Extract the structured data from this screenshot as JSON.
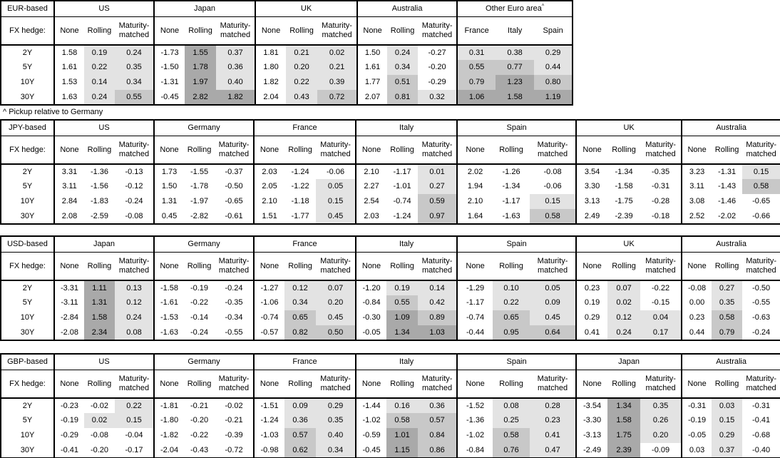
{
  "footnote": "^ Pickup relative to Germany",
  "labels": {
    "fx_hedge": "FX hedge:"
  },
  "tenors": [
    "2Y",
    "5Y",
    "10Y",
    "30Y"
  ],
  "shading_colors": {
    "light": "#e3e3e3",
    "mid": "#c8c8c8",
    "dark": "#a9a9a9"
  },
  "shading_thresholds": {
    "light_min": 0,
    "mid_min": 0.5,
    "dark_min": 1.0
  },
  "tables": [
    {
      "id": "eur",
      "base": "EUR-based",
      "groups": [
        {
          "country": "US",
          "cols": [
            "None",
            "Rolling",
            "Maturity-matched"
          ],
          "shade_cols": [
            false,
            true,
            true
          ],
          "rows": [
            [
              "1.58",
              "0.19",
              "0.24"
            ],
            [
              "1.61",
              "0.22",
              "0.35"
            ],
            [
              "1.53",
              "0.14",
              "0.34"
            ],
            [
              "1.63",
              "0.24",
              "0.55"
            ]
          ]
        },
        {
          "country": "Japan",
          "cols": [
            "None",
            "Rolling",
            "Maturity-matched"
          ],
          "shade_cols": [
            false,
            true,
            true
          ],
          "rows": [
            [
              "-1.73",
              "1.55",
              "0.37"
            ],
            [
              "-1.50",
              "1.78",
              "0.36"
            ],
            [
              "-1.31",
              "1.97",
              "0.40"
            ],
            [
              "-0.45",
              "2.82",
              "1.82"
            ]
          ]
        },
        {
          "country": "UK",
          "cols": [
            "None",
            "Rolling",
            "Maturity-matched"
          ],
          "shade_cols": [
            false,
            true,
            true
          ],
          "rows": [
            [
              "1.81",
              "0.21",
              "0.02"
            ],
            [
              "1.80",
              "0.20",
              "0.21"
            ],
            [
              "1.82",
              "0.22",
              "0.39"
            ],
            [
              "2.04",
              "0.43",
              "0.72"
            ]
          ]
        },
        {
          "country": "Australia",
          "cols": [
            "None",
            "Rolling",
            "Maturity-matched"
          ],
          "shade_cols": [
            false,
            true,
            true
          ],
          "rows": [
            [
              "1.50",
              "0.24",
              "-0.27"
            ],
            [
              "1.61",
              "0.34",
              "-0.20"
            ],
            [
              "1.77",
              "0.51",
              "-0.29"
            ],
            [
              "2.07",
              "0.81",
              "0.32"
            ]
          ]
        },
        {
          "country": "Other Euro area",
          "sup": "^",
          "cols": [
            "France",
            "Italy",
            "Spain"
          ],
          "shade_cols": [
            true,
            true,
            true
          ],
          "rows": [
            [
              "0.31",
              "0.38",
              "0.29"
            ],
            [
              "0.55",
              "0.77",
              "0.44"
            ],
            [
              "0.79",
              "1.23",
              "0.80"
            ],
            [
              "1.06",
              "1.58",
              "1.19"
            ]
          ]
        }
      ]
    },
    {
      "id": "jpy",
      "base": "JPY-based",
      "groups": [
        {
          "country": "US",
          "cols": [
            "None",
            "Rolling",
            "Maturity-matched"
          ],
          "shade_cols": [
            false,
            true,
            true
          ],
          "rows": [
            [
              "3.31",
              "-1.36",
              "-0.13"
            ],
            [
              "3.11",
              "-1.56",
              "-0.12"
            ],
            [
              "2.84",
              "-1.83",
              "-0.24"
            ],
            [
              "2.08",
              "-2.59",
              "-0.08"
            ]
          ]
        },
        {
          "country": "Germany",
          "cols": [
            "None",
            "Rolling",
            "Maturity-matched"
          ],
          "shade_cols": [
            false,
            true,
            true
          ],
          "rows": [
            [
              "1.73",
              "-1.55",
              "-0.37"
            ],
            [
              "1.50",
              "-1.78",
              "-0.50"
            ],
            [
              "1.31",
              "-1.97",
              "-0.65"
            ],
            [
              "0.45",
              "-2.82",
              "-0.61"
            ]
          ]
        },
        {
          "country": "France",
          "cols": [
            "None",
            "Rolling",
            "Maturity-matched"
          ],
          "shade_cols": [
            false,
            true,
            true
          ],
          "rows": [
            [
              "2.03",
              "-1.24",
              "-0.06"
            ],
            [
              "2.05",
              "-1.22",
              "0.05"
            ],
            [
              "2.10",
              "-1.18",
              "0.15"
            ],
            [
              "1.51",
              "-1.77",
              "0.45"
            ]
          ]
        },
        {
          "country": "Italy",
          "cols": [
            "None",
            "Rolling",
            "Maturity-matched"
          ],
          "shade_cols": [
            false,
            true,
            true
          ],
          "rows": [
            [
              "2.10",
              "-1.17",
              "0.01"
            ],
            [
              "2.27",
              "-1.01",
              "0.27"
            ],
            [
              "2.54",
              "-0.74",
              "0.59"
            ],
            [
              "2.03",
              "-1.24",
              "0.97"
            ]
          ]
        },
        {
          "country": "Spain",
          "cols": [
            "None",
            "Rolling",
            "Maturity-matched"
          ],
          "shade_cols": [
            false,
            true,
            true
          ],
          "rows": [
            [
              "2.02",
              "-1.26",
              "-0.08"
            ],
            [
              "1.94",
              "-1.34",
              "-0.06"
            ],
            [
              "2.10",
              "-1.17",
              "0.15"
            ],
            [
              "1.64",
              "-1.63",
              "0.58"
            ]
          ]
        },
        {
          "country": "UK",
          "cols": [
            "None",
            "Rolling",
            "Maturity-matched"
          ],
          "shade_cols": [
            false,
            true,
            true
          ],
          "rows": [
            [
              "3.54",
              "-1.34",
              "-0.35"
            ],
            [
              "3.30",
              "-1.58",
              "-0.31"
            ],
            [
              "3.13",
              "-1.75",
              "-0.28"
            ],
            [
              "2.49",
              "-2.39",
              "-0.18"
            ]
          ]
        },
        {
          "country": "Australia",
          "cols": [
            "None",
            "Rolling",
            "Maturity-matched"
          ],
          "shade_cols": [
            false,
            true,
            true
          ],
          "rows": [
            [
              "3.23",
              "-1.31",
              "0.15"
            ],
            [
              "3.11",
              "-1.43",
              "0.58"
            ],
            [
              "3.08",
              "-1.46",
              "-0.65"
            ],
            [
              "2.52",
              "-2.02",
              "-0.66"
            ]
          ]
        }
      ]
    },
    {
      "id": "usd",
      "base": "USD-based",
      "groups": [
        {
          "country": "Japan",
          "cols": [
            "None",
            "Rolling",
            "Maturity-matched"
          ],
          "shade_cols": [
            false,
            true,
            true
          ],
          "rows": [
            [
              "-3.31",
              "1.11",
              "0.13"
            ],
            [
              "-3.11",
              "1.31",
              "0.12"
            ],
            [
              "-2.84",
              "1.58",
              "0.24"
            ],
            [
              "-2.08",
              "2.34",
              "0.08"
            ]
          ]
        },
        {
          "country": "Germany",
          "cols": [
            "None",
            "Rolling",
            "Maturity-matched"
          ],
          "shade_cols": [
            false,
            true,
            true
          ],
          "rows": [
            [
              "-1.58",
              "-0.19",
              "-0.24"
            ],
            [
              "-1.61",
              "-0.22",
              "-0.35"
            ],
            [
              "-1.53",
              "-0.14",
              "-0.34"
            ],
            [
              "-1.63",
              "-0.24",
              "-0.55"
            ]
          ]
        },
        {
          "country": "France",
          "cols": [
            "None",
            "Rolling",
            "Maturity-matched"
          ],
          "shade_cols": [
            false,
            true,
            true
          ],
          "rows": [
            [
              "-1.27",
              "0.12",
              "0.07"
            ],
            [
              "-1.06",
              "0.34",
              "0.20"
            ],
            [
              "-0.74",
              "0.65",
              "0.45"
            ],
            [
              "-0.57",
              "0.82",
              "0.50"
            ]
          ]
        },
        {
          "country": "Italy",
          "cols": [
            "None",
            "Rolling",
            "Maturity-matched"
          ],
          "shade_cols": [
            false,
            true,
            true
          ],
          "rows": [
            [
              "-1.20",
              "0.19",
              "0.14"
            ],
            [
              "-0.84",
              "0.55",
              "0.42"
            ],
            [
              "-0.30",
              "1.09",
              "0.89"
            ],
            [
              "-0.05",
              "1.34",
              "1.03"
            ]
          ]
        },
        {
          "country": "Spain",
          "cols": [
            "None",
            "Rolling",
            "Maturity-matched"
          ],
          "shade_cols": [
            false,
            true,
            true
          ],
          "rows": [
            [
              "-1.29",
              "0.10",
              "0.05"
            ],
            [
              "-1.17",
              "0.22",
              "0.09"
            ],
            [
              "-0.74",
              "0.65",
              "0.45"
            ],
            [
              "-0.44",
              "0.95",
              "0.64"
            ]
          ]
        },
        {
          "country": "UK",
          "cols": [
            "None",
            "Rolling",
            "Maturity-matched"
          ],
          "shade_cols": [
            false,
            true,
            true
          ],
          "rows": [
            [
              "0.23",
              "0.07",
              "-0.22"
            ],
            [
              "0.19",
              "0.02",
              "-0.15"
            ],
            [
              "0.29",
              "0.12",
              "0.04"
            ],
            [
              "0.41",
              "0.24",
              "0.17"
            ]
          ]
        },
        {
          "country": "Australia",
          "cols": [
            "None",
            "Rolling",
            "Maturity-matched"
          ],
          "shade_cols": [
            false,
            true,
            true
          ],
          "rows": [
            [
              "-0.08",
              "0.27",
              "-0.50"
            ],
            [
              "0.00",
              "0.35",
              "-0.55"
            ],
            [
              "0.23",
              "0.58",
              "-0.63"
            ],
            [
              "0.44",
              "0.79",
              "-0.24"
            ]
          ]
        }
      ]
    },
    {
      "id": "gbp",
      "base": "GBP-based",
      "groups": [
        {
          "country": "US",
          "cols": [
            "None",
            "Rolling",
            "Maturity-matched"
          ],
          "shade_cols": [
            false,
            true,
            true
          ],
          "rows": [
            [
              "-0.23",
              "-0.02",
              "0.22"
            ],
            [
              "-0.19",
              "0.02",
              "0.15"
            ],
            [
              "-0.29",
              "-0.08",
              "-0.04"
            ],
            [
              "-0.41",
              "-0.20",
              "-0.17"
            ]
          ]
        },
        {
          "country": "Germany",
          "cols": [
            "None",
            "Rolling",
            "Maturity-matched"
          ],
          "shade_cols": [
            false,
            true,
            true
          ],
          "rows": [
            [
              "-1.81",
              "-0.21",
              "-0.02"
            ],
            [
              "-1.80",
              "-0.20",
              "-0.21"
            ],
            [
              "-1.82",
              "-0.22",
              "-0.39"
            ],
            [
              "-2.04",
              "-0.43",
              "-0.72"
            ]
          ]
        },
        {
          "country": "France",
          "cols": [
            "None",
            "Rolling",
            "Maturity-matched"
          ],
          "shade_cols": [
            false,
            true,
            true
          ],
          "rows": [
            [
              "-1.51",
              "0.09",
              "0.29"
            ],
            [
              "-1.24",
              "0.36",
              "0.35"
            ],
            [
              "-1.03",
              "0.57",
              "0.40"
            ],
            [
              "-0.98",
              "0.62",
              "0.34"
            ]
          ]
        },
        {
          "country": "Italy",
          "cols": [
            "None",
            "Rolling",
            "Maturity-matched"
          ],
          "shade_cols": [
            false,
            true,
            true
          ],
          "rows": [
            [
              "-1.44",
              "0.16",
              "0.36"
            ],
            [
              "-1.02",
              "0.58",
              "0.57"
            ],
            [
              "-0.59",
              "1.01",
              "0.84"
            ],
            [
              "-0.45",
              "1.15",
              "0.86"
            ]
          ]
        },
        {
          "country": "Spain",
          "cols": [
            "None",
            "Rolling",
            "Maturity-matched"
          ],
          "shade_cols": [
            false,
            true,
            true
          ],
          "rows": [
            [
              "-1.52",
              "0.08",
              "0.28"
            ],
            [
              "-1.36",
              "0.25",
              "0.23"
            ],
            [
              "-1.02",
              "0.58",
              "0.41"
            ],
            [
              "-0.84",
              "0.76",
              "0.47"
            ]
          ]
        },
        {
          "country": "Japan",
          "cols": [
            "None",
            "Rolling",
            "Maturity-matched"
          ],
          "shade_cols": [
            false,
            true,
            true
          ],
          "rows": [
            [
              "-3.54",
              "1.34",
              "0.35"
            ],
            [
              "-3.30",
              "1.58",
              "0.26"
            ],
            [
              "-3.13",
              "1.75",
              "0.20"
            ],
            [
              "-2.49",
              "2.39",
              "-0.09"
            ]
          ]
        },
        {
          "country": "Australia",
          "cols": [
            "None",
            "Rolling",
            "Maturity-matched"
          ],
          "shade_cols": [
            false,
            true,
            true
          ],
          "rows": [
            [
              "-0.31",
              "0.03",
              "-0.31"
            ],
            [
              "-0.19",
              "0.15",
              "-0.41"
            ],
            [
              "-0.05",
              "0.29",
              "-0.68"
            ],
            [
              "0.03",
              "0.37",
              "-0.40"
            ]
          ]
        }
      ]
    }
  ]
}
